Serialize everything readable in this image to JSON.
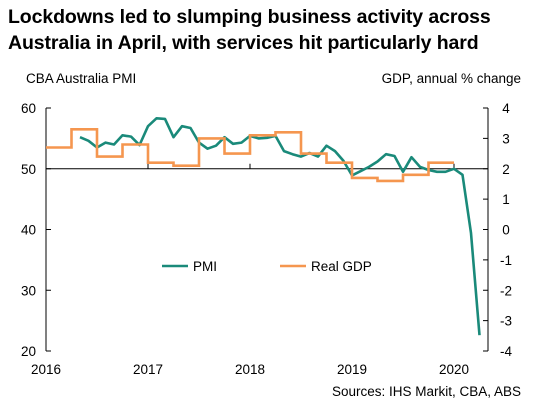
{
  "title_lines": [
    "Lockdowns led to slumping business activity across",
    "Australia in April, with services hit particularly hard"
  ],
  "left_axis_label": "CBA Australia PMI",
  "right_axis_label": "GDP, annual % change",
  "source": "Sources: IHS Markit, CBA, ABS",
  "colors": {
    "pmi": "#1a8a7a",
    "gdp": "#f5964f",
    "axis": "#000000"
  },
  "chart_data": {
    "type": "line",
    "x_tick_labels": [
      "2016",
      "2017",
      "2018",
      "2019",
      "2020"
    ],
    "xlim": [
      "2016-01",
      "2020-05"
    ],
    "y_left": {
      "label": "CBA Australia PMI",
      "ylim": [
        20,
        60
      ],
      "ticks": [
        20,
        30,
        40,
        50,
        60
      ]
    },
    "y_right": {
      "label": "GDP, annual % change",
      "ylim": [
        -4,
        4
      ],
      "ticks": [
        -4,
        -3,
        -2,
        -1,
        0,
        1,
        2,
        3,
        4
      ]
    },
    "grid": false,
    "legend_placement": "center-right",
    "series": [
      {
        "name": "PMI",
        "axis": "left",
        "x": [
          "2016-05",
          "2016-06",
          "2016-07",
          "2016-08",
          "2016-09",
          "2016-10",
          "2016-11",
          "2016-12",
          "2017-01",
          "2017-02",
          "2017-03",
          "2017-04",
          "2017-05",
          "2017-06",
          "2017-07",
          "2017-08",
          "2017-09",
          "2017-10",
          "2017-11",
          "2017-12",
          "2018-01",
          "2018-02",
          "2018-03",
          "2018-04",
          "2018-05",
          "2018-06",
          "2018-07",
          "2018-08",
          "2018-09",
          "2018-10",
          "2018-11",
          "2018-12",
          "2019-01",
          "2019-02",
          "2019-03",
          "2019-04",
          "2019-05",
          "2019-06",
          "2019-07",
          "2019-08",
          "2019-09",
          "2019-10",
          "2019-11",
          "2019-12",
          "2020-01",
          "2020-02",
          "2020-03",
          "2020-04"
        ],
        "values": [
          55.2,
          54.6,
          53.5,
          54.3,
          54.0,
          55.5,
          55.3,
          53.9,
          57.0,
          58.3,
          58.2,
          55.2,
          57.0,
          56.7,
          54.3,
          53.3,
          53.8,
          55.2,
          54.1,
          54.3,
          55.4,
          55.0,
          55.1,
          55.4,
          52.9,
          52.4,
          52.0,
          52.6,
          52.0,
          53.8,
          52.9,
          51.3,
          48.9,
          49.6,
          50.3,
          51.2,
          52.4,
          52.1,
          49.5,
          51.9,
          50.3,
          49.8,
          49.5,
          49.5,
          50.0,
          49.0,
          39.4,
          22.6
        ]
      },
      {
        "name": "Real GDP",
        "axis": "right",
        "quarterly": true,
        "x": [
          "2016-Q1",
          "2016-Q2",
          "2016-Q3",
          "2016-Q4",
          "2017-Q1",
          "2017-Q2",
          "2017-Q3",
          "2017-Q4",
          "2018-Q1",
          "2018-Q2",
          "2018-Q3",
          "2018-Q4",
          "2019-Q1",
          "2019-Q2",
          "2019-Q3",
          "2019-Q4"
        ],
        "values": [
          2.7,
          3.3,
          2.4,
          2.8,
          2.2,
          2.1,
          3.0,
          2.5,
          3.1,
          3.2,
          2.5,
          2.2,
          1.7,
          1.6,
          1.8,
          2.2
        ]
      }
    ]
  }
}
